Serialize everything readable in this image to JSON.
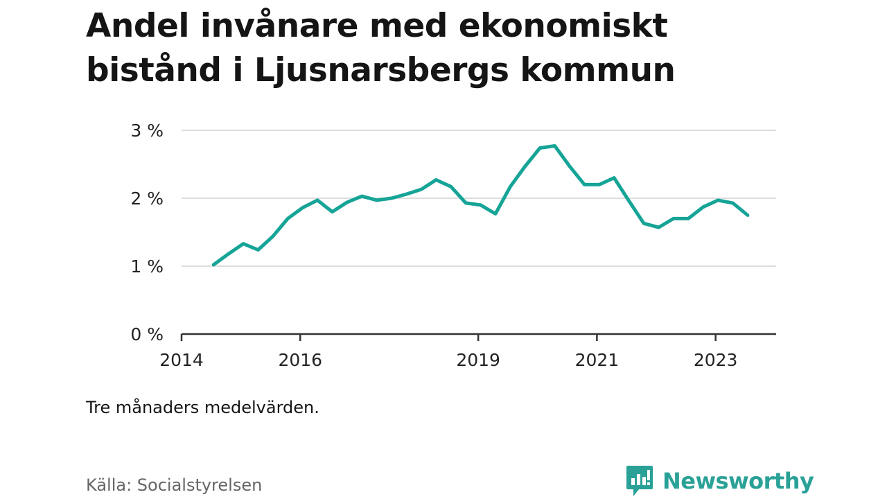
{
  "title": "Andel invånare med ekonomiskt bistånd i Ljusnarsbergs kommun",
  "subtitle": "Tre månaders medelvärden.",
  "source": "Källa: Socialstyrelsen",
  "brand": "Newsworthy",
  "colors": {
    "line": "#16a497",
    "grid": "#dddddd",
    "axis": "#333333",
    "brand": "#2aa197"
  },
  "chart_data": {
    "type": "line",
    "title": "Andel invånare med ekonomiskt bistånd i Ljusnarsbergs kommun",
    "xlabel": "",
    "ylabel": "",
    "ylim": [
      0,
      3
    ],
    "y_ticks": [
      0,
      1,
      2,
      3
    ],
    "y_tick_labels": [
      "0 %",
      "1 %",
      "2 %",
      "3 %"
    ],
    "xlim": [
      2014,
      2024.02
    ],
    "x_ticks": [
      2014,
      2016,
      2019,
      2021,
      2023
    ],
    "x_tick_labels": [
      "2014",
      "2016",
      "2019",
      "2021",
      "2023"
    ],
    "grid": true,
    "series": [
      {
        "x": [
          2014.54,
          2014.79,
          2015.04,
          2015.29,
          2015.54,
          2015.79,
          2016.04,
          2016.29,
          2016.54,
          2016.79,
          2017.04,
          2017.29,
          2017.54,
          2017.79,
          2018.04,
          2018.29,
          2018.54,
          2018.79,
          2019.04,
          2019.29,
          2019.54,
          2019.79,
          2020.04,
          2020.29,
          2020.54,
          2020.79,
          2021.04,
          2021.29,
          2021.54,
          2021.79,
          2022.04,
          2022.29,
          2022.54,
          2022.79,
          2023.04,
          2023.29,
          2023.54
        ],
        "values": [
          1.02,
          1.18,
          1.33,
          1.24,
          1.44,
          1.7,
          1.86,
          1.97,
          1.8,
          1.94,
          2.03,
          1.97,
          2.0,
          2.06,
          2.13,
          2.27,
          2.17,
          1.93,
          1.9,
          1.77,
          2.17,
          2.47,
          2.74,
          2.77,
          2.47,
          2.2,
          2.2,
          2.3,
          1.96,
          1.63,
          1.57,
          1.7,
          1.7,
          1.87,
          1.97,
          1.93,
          1.75
        ]
      }
    ]
  }
}
